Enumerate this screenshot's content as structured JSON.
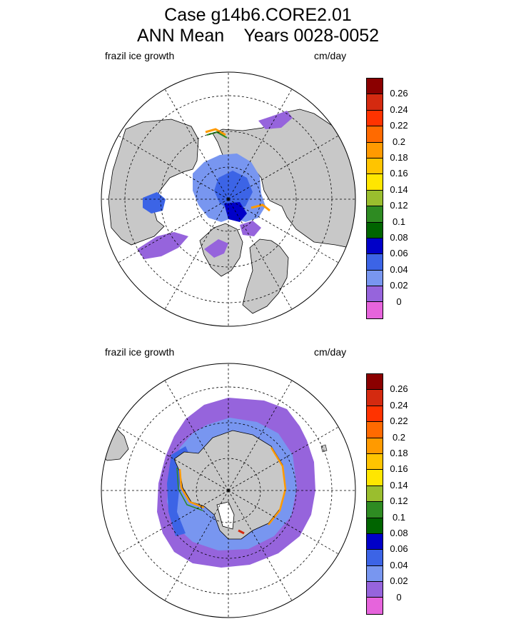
{
  "title": {
    "line1": "Case g14b6.CORE2.01",
    "line2": "ANN Mean    Years 0028-0052"
  },
  "panels": [
    {
      "id": "north",
      "variable_label": "frazil ice growth",
      "units_label": "cm/day"
    },
    {
      "id": "south",
      "variable_label": "frazil ice growth",
      "units_label": "cm/day"
    }
  ],
  "colorbar": {
    "levels": [
      "0.26",
      "0.24",
      "0.22",
      "0.2",
      "0.18",
      "0.16",
      "0.14",
      "0.12",
      "0.1",
      "0.08",
      "0.06",
      "0.04",
      "0.02",
      "0"
    ],
    "colors_top_to_bottom": [
      "#8b0000",
      "#d42a10",
      "#ff3300",
      "#ff6a00",
      "#ff9a00",
      "#ffc400",
      "#ffe600",
      "#9abe2e",
      "#2e8b22",
      "#006400",
      "#0000c8",
      "#3c64e6",
      "#7896f0",
      "#9664dc",
      "#e664dc"
    ]
  },
  "colors": {
    "land": "#c8c8c8",
    "ocean": "#ffffff",
    "coast": "#000000"
  }
}
